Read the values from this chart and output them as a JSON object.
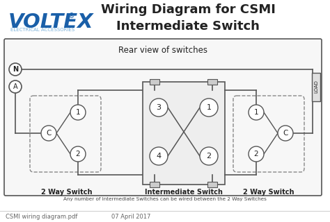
{
  "title_main": "Wiring Diagram for CSMI\nIntermediate Switch",
  "voltex_text": "VOLTEX",
  "voltex_reg": "®",
  "voltex_sub": "ELECTRICAL ACCESSORIES",
  "rear_view_text": "Rear view of switches",
  "label_2way_left": "2 Way Switch",
  "label_intermediate": "Intermediate Switch",
  "label_2way_right": "2 Way Switch",
  "footer_note": "Any number of Intermediate Switches can be wired between the 2 Way Switches",
  "footer_left": "CSMI wiring diagram.pdf",
  "footer_right": "07 April 2017",
  "bg_color": "#ffffff",
  "box_color": "#555555",
  "dashed_color": "#888888",
  "wire_color": "#555555",
  "circle_color": "#ffffff",
  "circle_edge": "#555555",
  "voltex_color": "#1a5fa8",
  "voltex_sub_color": "#7ab0d8",
  "title_color": "#222222",
  "load_box_color": "#e0e0e0",
  "inter_box_color": "#eeeeee",
  "footer_line_color": "#cccccc",
  "footer_text_color": "#666666"
}
